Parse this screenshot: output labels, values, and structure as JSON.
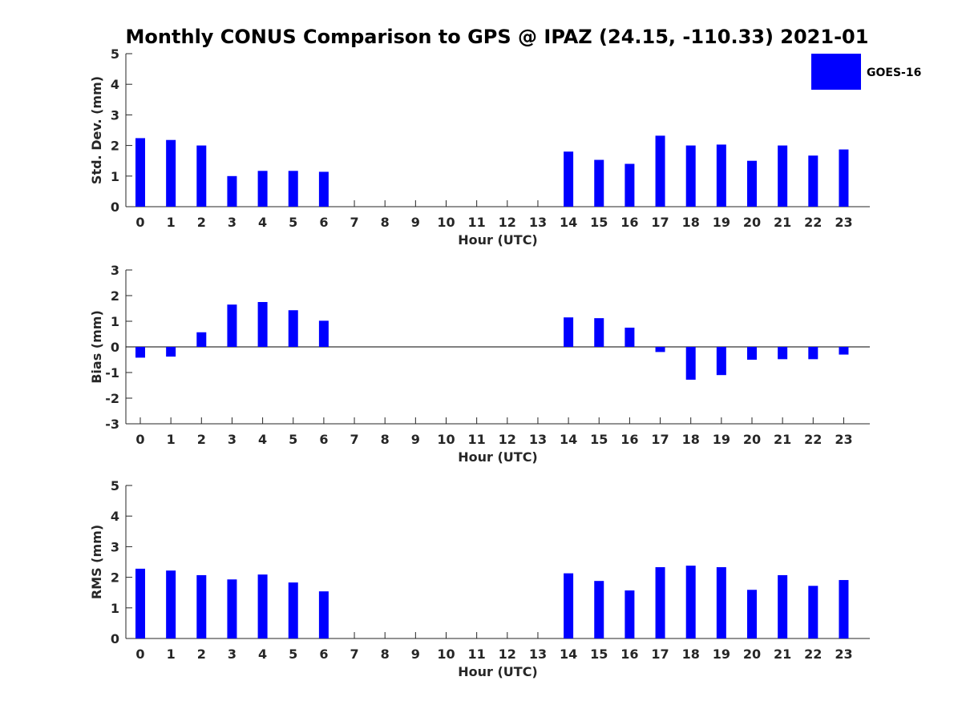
{
  "chart_data": {
    "type": "bar",
    "title": "Monthly CONUS Comparison to GPS @ IPAZ (24.15, -110.33) 2021-01",
    "legend": {
      "entries": [
        "GOES-16"
      ],
      "placement": "top-right"
    },
    "color": "#0000ff",
    "categories": [
      "0",
      "1",
      "2",
      "3",
      "4",
      "5",
      "6",
      "7",
      "8",
      "9",
      "10",
      "11",
      "12",
      "13",
      "14",
      "15",
      "16",
      "17",
      "18",
      "19",
      "20",
      "21",
      "22",
      "23"
    ],
    "panels": [
      {
        "id": "std",
        "ylabel": "Std. Dev. (mm)",
        "xlabel": "Hour (UTC)",
        "ylim": [
          0,
          5
        ],
        "yticks": [
          0,
          1,
          2,
          3,
          4,
          5
        ],
        "ytick_labels": [
          "0",
          "1",
          "2",
          "3",
          "4",
          "5"
        ],
        "series": [
          {
            "name": "GOES-16",
            "values": [
              2.24,
              2.18,
              2.0,
              1.0,
              1.17,
              1.17,
              1.14,
              null,
              null,
              null,
              null,
              null,
              null,
              null,
              1.8,
              1.53,
              1.4,
              2.32,
              2.0,
              2.03,
              1.5,
              2.0,
              1.67,
              1.87
            ]
          }
        ]
      },
      {
        "id": "bias",
        "ylabel": "Bias (mm)",
        "xlabel": "Hour (UTC)",
        "ylim": [
          -3,
          3
        ],
        "yticks": [
          -3,
          -2,
          -1,
          0,
          1,
          2,
          3
        ],
        "ytick_labels": [
          "-3",
          "-2",
          "-1",
          "0",
          "1",
          "2",
          "3"
        ],
        "zero_line": true,
        "series": [
          {
            "name": "GOES-16",
            "values": [
              -0.42,
              -0.38,
              0.57,
              1.65,
              1.75,
              1.43,
              1.02,
              null,
              null,
              null,
              null,
              null,
              null,
              null,
              1.15,
              1.12,
              0.75,
              -0.2,
              -1.28,
              -1.1,
              -0.5,
              -0.48,
              -0.48,
              -0.3
            ]
          }
        ]
      },
      {
        "id": "rms",
        "ylabel": "RMS (mm)",
        "xlabel": "Hour (UTC)",
        "ylim": [
          0,
          5
        ],
        "yticks": [
          0,
          1,
          2,
          3,
          4,
          5
        ],
        "ytick_labels": [
          "0",
          "1",
          "2",
          "3",
          "4",
          "5"
        ],
        "series": [
          {
            "name": "GOES-16",
            "values": [
              2.28,
              2.22,
              2.07,
              1.93,
              2.09,
              1.83,
              1.54,
              null,
              null,
              null,
              null,
              null,
              null,
              null,
              2.13,
              1.88,
              1.57,
              2.33,
              2.38,
              2.33,
              1.59,
              2.07,
              1.72,
              1.91
            ]
          }
        ]
      }
    ]
  }
}
